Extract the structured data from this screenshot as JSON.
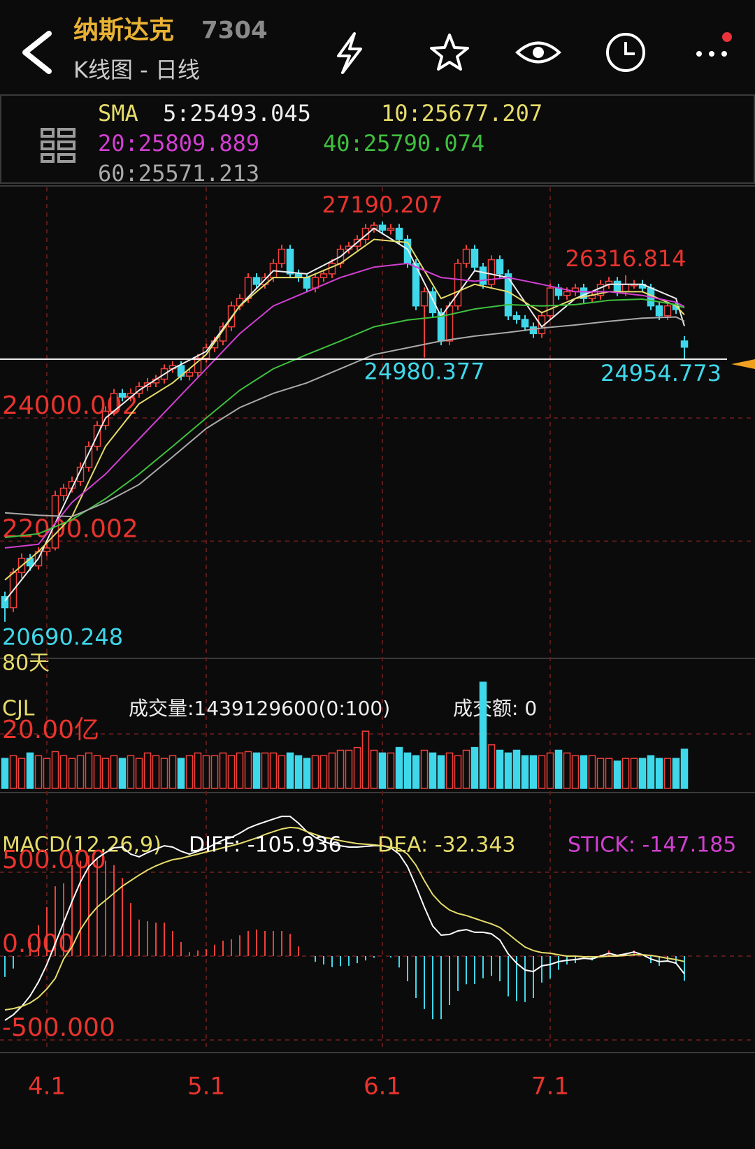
{
  "header": {
    "title": "纳斯达克",
    "code": "7304",
    "subtitle": "K线图 - 日线"
  },
  "chart_data": [
    {
      "type": "candlestick",
      "label": "SMA",
      "note": "80天",
      "categories": [
        null,
        null,
        null,
        null,
        null,
        "4.1",
        null,
        null,
        null,
        null,
        null,
        null,
        null,
        null,
        null,
        null,
        null,
        null,
        null,
        null,
        null,
        null,
        null,
        null,
        "5.1",
        null,
        null,
        null,
        null,
        null,
        null,
        null,
        null,
        null,
        null,
        null,
        null,
        null,
        null,
        null,
        null,
        null,
        null,
        null,
        null,
        "6.1",
        null,
        null,
        null,
        null,
        null,
        null,
        null,
        null,
        null,
        null,
        null,
        null,
        null,
        null,
        null,
        null,
        null,
        null,
        null,
        "7.1",
        null,
        null,
        null,
        null,
        null,
        null,
        null,
        null,
        null,
        null,
        null,
        null,
        null,
        null,
        null,
        null
      ],
      "open": [
        21100,
        20920,
        21490,
        21720,
        21600,
        21830,
        21890,
        22740,
        22860,
        22970,
        23200,
        23540,
        23880,
        24110,
        24400,
        24340,
        24400,
        24510,
        24570,
        24630,
        24800,
        24850,
        24680,
        24740,
        24970,
        25140,
        25250,
        25480,
        25820,
        25940,
        26280,
        26170,
        26280,
        26510,
        26740,
        26340,
        26280,
        26110,
        26280,
        26340,
        26510,
        26740,
        26790,
        26900,
        27080,
        27130,
        27050,
        27080,
        26900,
        26510,
        25820,
        26050,
        25710,
        25250,
        25820,
        26510,
        26740,
        26450,
        26170,
        26570,
        26340,
        25660,
        25600,
        25480,
        25370,
        25660,
        26110,
        25990,
        26050,
        26110,
        25940,
        25990,
        26170,
        26220,
        26050,
        26170,
        26170,
        26110,
        25820,
        25660,
        25820,
        25250
      ],
      "high": [
        21180,
        21560,
        21800,
        21790,
        21900,
        21960,
        22820,
        22930,
        23050,
        23280,
        23620,
        23950,
        24190,
        24470,
        24470,
        24480,
        24580,
        24650,
        24700,
        24870,
        24920,
        24920,
        24810,
        25040,
        25210,
        25320,
        25550,
        25890,
        26010,
        26350,
        26350,
        26350,
        26580,
        26810,
        26810,
        26410,
        26350,
        26350,
        26410,
        26580,
        26810,
        26860,
        26970,
        27150,
        27180,
        27190.207,
        27150,
        27150,
        26970,
        26580,
        26120,
        26120,
        25780,
        25890,
        26580,
        26810,
        26810,
        26520,
        26640,
        26640,
        26410,
        25730,
        25670,
        25550,
        25730,
        26180,
        26180,
        26120,
        26180,
        26180,
        26060,
        26240,
        26290,
        26290,
        26316.814,
        26240,
        26240,
        26180,
        25890,
        25890,
        25890,
        25330
      ],
      "low": [
        20690.248,
        20850,
        21400,
        21520,
        21540,
        21760,
        21850,
        22650,
        22790,
        22900,
        23130,
        23470,
        23810,
        24040,
        24270,
        24270,
        24330,
        24440,
        24500,
        24560,
        24730,
        24610,
        24610,
        24670,
        24900,
        25070,
        25180,
        25410,
        25750,
        25870,
        26100,
        26100,
        26210,
        26440,
        26270,
        26210,
        26040,
        26040,
        26210,
        26270,
        26440,
        26670,
        26720,
        26830,
        27010,
        26980,
        26980,
        26830,
        26440,
        25750,
        24980.377,
        25640,
        25180,
        25180,
        25750,
        26440,
        26380,
        26100,
        26100,
        26270,
        25590,
        25530,
        25410,
        25300,
        25300,
        25590,
        25920,
        25920,
        25980,
        25870,
        25870,
        25920,
        26100,
        25980,
        25980,
        26100,
        26040,
        25750,
        25590,
        25590,
        25690,
        24954.773
      ],
      "close": [
        20920,
        21490,
        21720,
        21600,
        21830,
        21890,
        22740,
        22860,
        22970,
        23200,
        23540,
        23880,
        24110,
        24400,
        24340,
        24400,
        24510,
        24570,
        24630,
        24800,
        24850,
        24680,
        24740,
        24970,
        25140,
        25250,
        25480,
        25820,
        25940,
        26280,
        26170,
        26280,
        26510,
        26740,
        26340,
        26280,
        26110,
        26280,
        26340,
        26510,
        26740,
        26790,
        26900,
        27080,
        27130,
        27050,
        27080,
        26900,
        26510,
        25820,
        26050,
        25710,
        25250,
        25820,
        26510,
        26740,
        26450,
        26170,
        26570,
        26340,
        25660,
        25600,
        25480,
        25370,
        25660,
        26110,
        25990,
        26050,
        26110,
        25940,
        25990,
        26170,
        26220,
        26050,
        26170,
        26170,
        26110,
        25820,
        25660,
        25820,
        25760,
        25150
      ],
      "up_color": "#f0403a",
      "down_color": "#3fd8ea",
      "series": [
        {
          "label": "5:25493.045",
          "color": "#eeeeee",
          "x": [
            0,
            4,
            8,
            12,
            16,
            20,
            24,
            28,
            32,
            36,
            40,
            44,
            48,
            52,
            56,
            60,
            64,
            68,
            72,
            76,
            80,
            81
          ],
          "values": [
            21030,
            21720,
            22860,
            24000,
            24450,
            24800,
            25080,
            25820,
            26390,
            26340,
            26620,
            27080,
            26740,
            25650,
            26390,
            26280,
            25480,
            25940,
            26170,
            26170,
            25940,
            25493.045
          ]
        },
        {
          "label": "10:25677.207",
          "color": "#e6dc6a",
          "x": [
            0,
            4,
            8,
            12,
            16,
            20,
            24,
            28,
            32,
            36,
            40,
            44,
            48,
            52,
            56,
            60,
            64,
            68,
            72,
            76,
            80,
            81
          ],
          "values": [
            21370,
            21830,
            22400,
            23540,
            24230,
            24570,
            25030,
            25820,
            26280,
            26280,
            26510,
            26900,
            26850,
            25940,
            26170,
            26050,
            25710,
            25940,
            26050,
            26050,
            25820,
            25677.207
          ]
        },
        {
          "label": "20:25809.889",
          "color": "#d23fd2",
          "x": [
            0,
            4,
            8,
            12,
            16,
            20,
            24,
            28,
            32,
            36,
            40,
            44,
            48,
            52,
            56,
            60,
            64,
            68,
            72,
            76,
            80,
            81
          ],
          "values": [
            21890,
            21950,
            22630,
            23090,
            23660,
            24230,
            24800,
            25370,
            25820,
            26050,
            26280,
            26450,
            26510,
            26280,
            26220,
            26280,
            26170,
            26050,
            26050,
            25990,
            25880,
            25809.889
          ]
        },
        {
          "label": "40:25790.074",
          "color": "#3fbf3f",
          "x": [
            0,
            4,
            8,
            12,
            16,
            20,
            24,
            28,
            32,
            36,
            40,
            44,
            48,
            52,
            56,
            60,
            64,
            68,
            72,
            76,
            80,
            81
          ],
          "values": [
            22060,
            22120,
            22350,
            22690,
            23090,
            23540,
            24000,
            24450,
            24800,
            25030,
            25250,
            25480,
            25590,
            25650,
            25770,
            25840,
            25820,
            25840,
            25910,
            25930,
            25840,
            25790.074
          ]
        },
        {
          "label": "60:25571.213",
          "color": "#aaaaaa",
          "x": [
            0,
            4,
            8,
            12,
            16,
            20,
            24,
            28,
            32,
            36,
            40,
            44,
            48,
            52,
            56,
            60,
            64,
            68,
            72,
            76,
            80,
            81
          ],
          "values": [
            22460,
            22420,
            22400,
            22630,
            22920,
            23370,
            23830,
            24170,
            24400,
            24570,
            24800,
            25030,
            25140,
            25250,
            25330,
            25390,
            25460,
            25510,
            25570,
            25620,
            25640,
            25571.213
          ]
        }
      ],
      "ylim": [
        20120,
        27700
      ],
      "yticks": [
        22000.002,
        24000.002
      ],
      "grid": true
    },
    {
      "type": "bar",
      "label": "CJL",
      "volume_label": "成交量:1439129600(0:100)",
      "amount_label": "成交额: 0",
      "values": [
        11,
        12,
        11,
        13,
        12,
        11,
        13.5,
        12,
        11,
        12,
        13,
        12,
        11,
        12,
        11,
        12,
        11,
        13,
        12,
        11,
        12,
        11,
        12,
        13,
        12,
        12,
        13,
        12,
        13,
        13.5,
        13,
        13,
        13,
        12,
        13,
        12,
        11,
        12,
        12,
        13,
        14,
        14,
        15,
        21,
        14,
        13,
        13,
        15,
        13,
        12,
        14,
        13,
        12,
        13,
        12,
        14,
        15,
        39,
        16,
        14,
        13,
        14,
        12,
        12,
        12,
        13,
        14,
        13,
        12,
        12,
        12,
        11,
        11,
        10,
        11,
        11,
        11,
        12,
        11,
        11,
        11,
        14.391296
      ],
      "ylim": [
        0,
        47
      ],
      "yticks": [
        {
          "value": 20,
          "label": "20.00亿"
        }
      ]
    },
    {
      "type": "macd",
      "label": "MACD(12,26,9)",
      "series": [
        {
          "label": "DIFF: -105.936",
          "color": "#ffffff",
          "values": [
            -383,
            -350,
            -300,
            -238,
            -154,
            -50,
            75,
            200,
            325,
            442,
            533,
            583,
            617,
            646,
            650,
            608,
            592,
            617,
            638,
            658,
            650,
            625,
            608,
            625,
            642,
            667,
            692,
            708,
            733,
            763,
            783,
            800,
            817,
            833,
            833,
            792,
            742,
            708,
            683,
            667,
            658,
            650,
            650,
            654,
            658,
            658,
            646,
            608,
            533,
            417,
            292,
            179,
            125,
            129,
            150,
            158,
            142,
            142,
            133,
            96,
            13,
            -42,
            -83,
            -92,
            -58,
            -50,
            -33,
            -25,
            -21,
            -13,
            -17,
            0,
            17,
            4,
            13,
            25,
            8,
            -17,
            -33,
            -29,
            -42,
            -105.936
          ]
        },
        {
          "label": "DEA: -32.343",
          "color": "#e6dc6a",
          "values": [
            -321,
            -313,
            -300,
            -279,
            -246,
            -196,
            -133,
            -17,
            54,
            158,
            233,
            292,
            333,
            375,
            417,
            450,
            483,
            513,
            538,
            558,
            575,
            583,
            596,
            608,
            621,
            633,
            646,
            658,
            671,
            688,
            704,
            725,
            742,
            758,
            767,
            763,
            742,
            725,
            708,
            700,
            688,
            679,
            671,
            667,
            663,
            658,
            650,
            642,
            608,
            542,
            450,
            367,
            313,
            275,
            254,
            242,
            225,
            208,
            192,
            171,
            133,
            92,
            54,
            33,
            21,
            17,
            8,
            0,
            0,
            -4,
            -4,
            -4,
            0,
            0,
            4,
            8,
            8,
            4,
            -4,
            -13,
            -21,
            -32.343
          ]
        },
        {
          "label": "STICK: -147.185",
          "color": "#d23fd2",
          "values": [
            -124,
            -74,
            0,
            82,
            184,
            292,
            416,
            434,
            542,
            568,
            600,
            582,
            568,
            542,
            466,
            316,
            218,
            208,
            200,
            200,
            150,
            84,
            24,
            34,
            42,
            68,
            92,
            100,
            124,
            150,
            158,
            150,
            150,
            150,
            132,
            58,
            0,
            -34,
            -50,
            -66,
            -60,
            -58,
            -42,
            -26,
            -10,
            0,
            -8,
            -68,
            -150,
            -250,
            -316,
            -376,
            -376,
            -292,
            -208,
            -168,
            -166,
            -132,
            -118,
            -150,
            -240,
            -268,
            -274,
            -250,
            -158,
            -134,
            -82,
            -50,
            -42,
            -18,
            -26,
            8,
            34,
            8,
            18,
            34,
            0,
            -42,
            -58,
            -32,
            -42,
            -147.185
          ]
        }
      ],
      "ylim": [
        -550,
        950
      ],
      "yticks": [
        {
          "value": -500,
          "label": "-500.000"
        },
        {
          "value": 0,
          "label": "0.000"
        },
        {
          "value": 500,
          "label": "500.000"
        }
      ]
    }
  ]
}
